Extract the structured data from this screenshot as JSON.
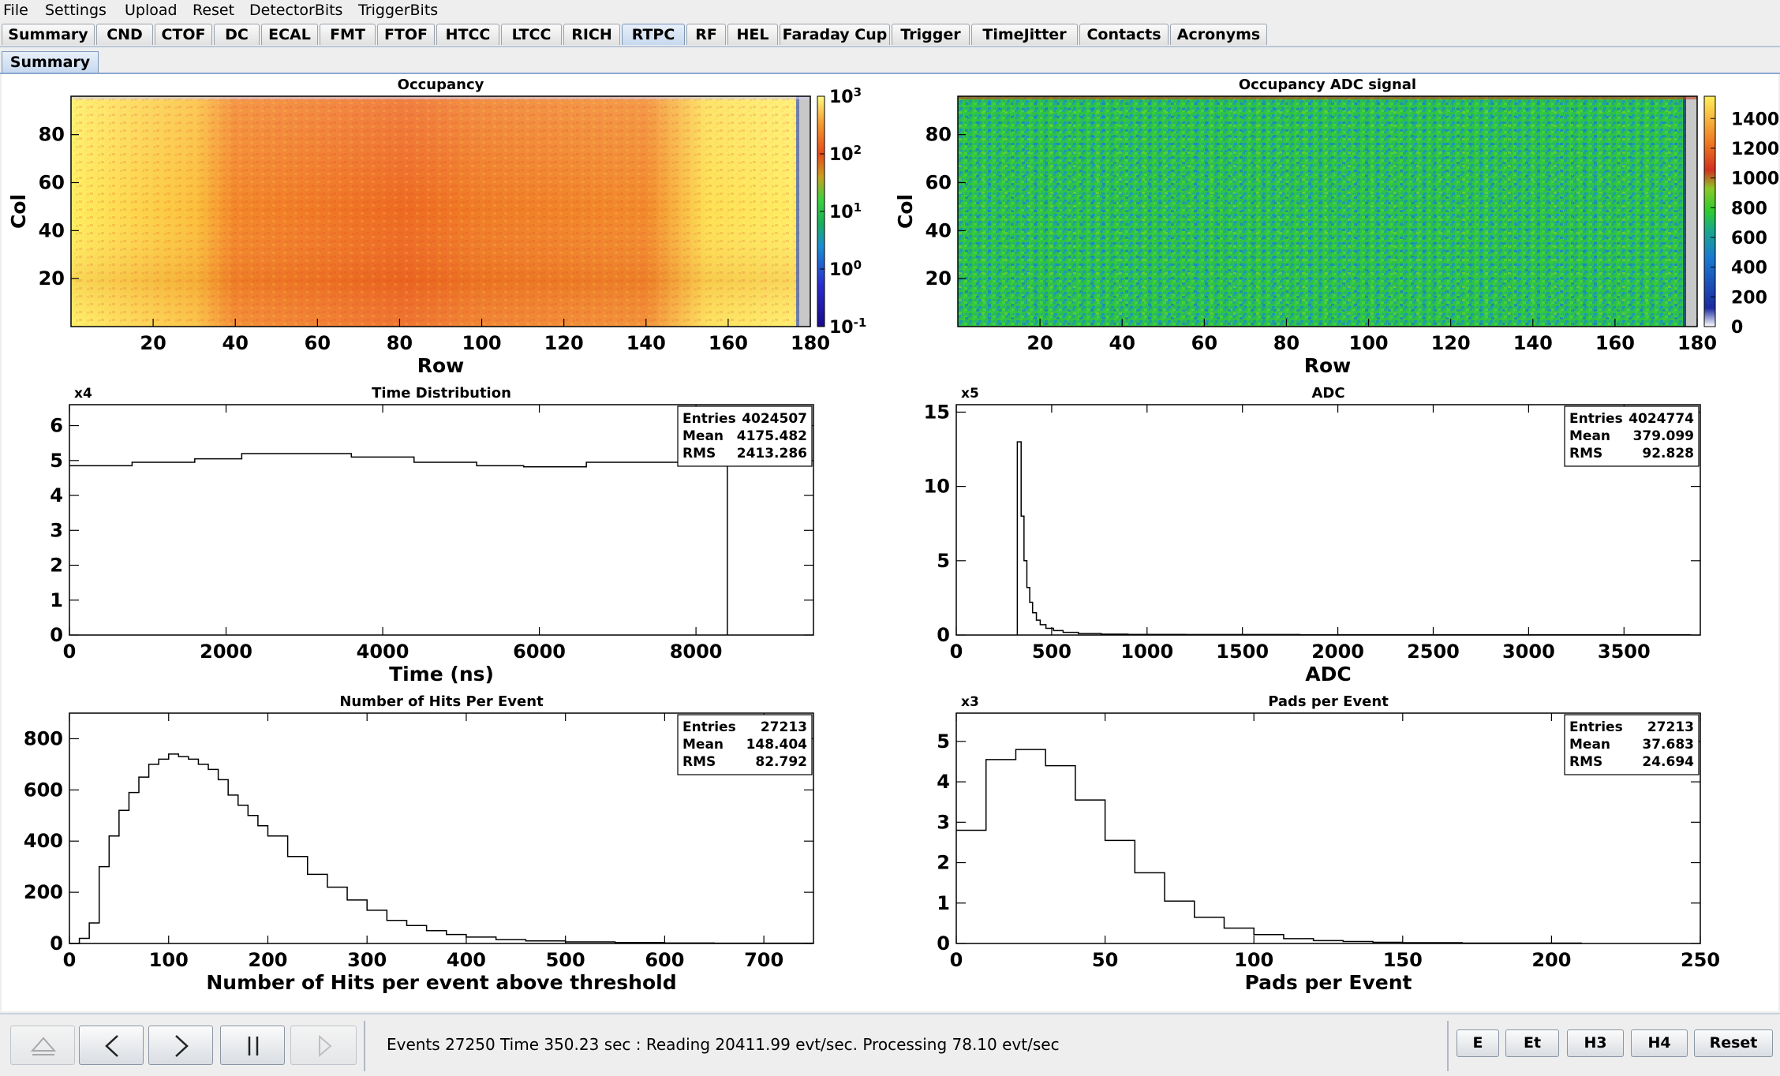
{
  "menubar": {
    "items": [
      "File",
      "Settings",
      "Upload",
      "Reset",
      "DetectorBits",
      "TriggerBits"
    ]
  },
  "tabs": [
    "Summary",
    "CND",
    "CTOF",
    "DC",
    "ECAL",
    "FMT",
    "FTOF",
    "HTCC",
    "LTCC",
    "RICH",
    "RTPC",
    "RF",
    "HEL",
    "Faraday Cup",
    "Trigger",
    "TimeJitter",
    "Contacts",
    "Acronyms"
  ],
  "active_tab": "RTPC",
  "subtab": "Summary",
  "colors": {
    "active_tab": "#c7d8ee",
    "plot_bg": "#ffffff"
  },
  "chart_data": [
    {
      "type": "heatmap",
      "title": "Occupancy",
      "xlabel": "Row",
      "ylabel": "Col",
      "xlim": [
        0,
        180
      ],
      "ylim": [
        0,
        96
      ],
      "x_ticks": [
        20,
        40,
        60,
        80,
        100,
        120,
        140,
        160,
        180
      ],
      "y_ticks": [
        20,
        40,
        60,
        80
      ],
      "color_scale": "log",
      "colorbar_ticks": [
        "10^-1",
        "10^0",
        "10^1",
        "10^2",
        "10^3"
      ],
      "column_profile": [
        {
          "x": 0,
          "level": "high"
        },
        {
          "x": 30,
          "level": "high"
        },
        {
          "x": 40,
          "level": "medium"
        },
        {
          "x": 80,
          "level": "medium"
        },
        {
          "x": 145,
          "level": "medium"
        },
        {
          "x": 160,
          "level": "high"
        },
        {
          "x": 180,
          "level": "high"
        }
      ]
    },
    {
      "type": "heatmap",
      "title": "Occupancy ADC signal",
      "xlabel": "Row",
      "ylabel": "Col",
      "xlim": [
        0,
        180
      ],
      "ylim": [
        0,
        96
      ],
      "x_ticks": [
        20,
        40,
        60,
        80,
        100,
        120,
        140,
        160,
        180
      ],
      "y_ticks": [
        20,
        40,
        60,
        80
      ],
      "color_scale": "linear",
      "colorbar_ticks": [
        0,
        200,
        400,
        600,
        800,
        1000,
        1200,
        1400
      ],
      "typical_value": 700
    },
    {
      "type": "line",
      "title": "Time Distribution",
      "xlabel": "Time (ns)",
      "multiplier": "x4",
      "xlim": [
        0,
        9500
      ],
      "ylim": [
        0,
        6.6
      ],
      "x_ticks": [
        0,
        2000,
        4000,
        6000,
        8000
      ],
      "y_ticks": [
        0,
        1,
        2,
        3,
        4,
        5,
        6
      ],
      "stats": {
        "entries": "4024507",
        "mean": "4175.482",
        "rms": "2413.286"
      },
      "x": [
        0,
        200,
        800,
        1600,
        2200,
        3000,
        3600,
        4400,
        5200,
        5800,
        6600,
        7400,
        8000,
        8380,
        8400,
        8400
      ],
      "y": [
        4.85,
        4.85,
        4.95,
        5.05,
        5.2,
        5.2,
        5.1,
        4.95,
        4.85,
        4.82,
        4.95,
        4.95,
        4.95,
        5.0,
        5.0,
        0
      ]
    },
    {
      "type": "line",
      "title": "ADC",
      "xlabel": "ADC",
      "multiplier": "x5",
      "xlim": [
        0,
        3900
      ],
      "ylim": [
        0,
        15.5
      ],
      "x_ticks": [
        0,
        500,
        1000,
        1500,
        2000,
        2500,
        3000,
        3500
      ],
      "y_ticks": [
        0,
        5,
        10,
        15
      ],
      "stats": {
        "entries": "4024774",
        "mean": "379.099",
        "rms": "92.828"
      },
      "x": [
        320,
        320,
        340,
        355,
        370,
        385,
        400,
        420,
        440,
        470,
        510,
        560,
        640,
        760,
        900,
        1200,
        1800,
        2600,
        3500,
        3850
      ],
      "y": [
        0,
        13,
        8,
        5,
        3.2,
        2.2,
        1.5,
        1.0,
        0.7,
        0.45,
        0.3,
        0.18,
        0.1,
        0.06,
        0.04,
        0.03,
        0.02,
        0.02,
        0.02,
        0.02
      ]
    },
    {
      "type": "line",
      "title": "Number of Hits Per Event",
      "xlabel": "Number of Hits per event above threshold",
      "xlim": [
        0,
        750
      ],
      "ylim": [
        0,
        900
      ],
      "x_ticks": [
        0,
        100,
        200,
        300,
        400,
        500,
        600,
        700
      ],
      "y_ticks": [
        0,
        200,
        400,
        600,
        800
      ],
      "stats": {
        "entries": "27213",
        "mean": "148.404",
        "rms": "82.792"
      },
      "x": [
        0,
        10,
        20,
        30,
        40,
        50,
        60,
        70,
        80,
        90,
        100,
        110,
        120,
        130,
        140,
        150,
        160,
        170,
        180,
        190,
        200,
        220,
        240,
        260,
        280,
        300,
        320,
        340,
        360,
        380,
        400,
        430,
        460,
        500,
        550,
        600,
        650,
        700,
        750
      ],
      "y": [
        0,
        20,
        80,
        300,
        420,
        520,
        590,
        650,
        700,
        720,
        740,
        730,
        720,
        700,
        680,
        640,
        580,
        540,
        500,
        460,
        420,
        340,
        270,
        220,
        170,
        130,
        90,
        70,
        50,
        35,
        25,
        15,
        10,
        6,
        4,
        2,
        1,
        1,
        0
      ]
    },
    {
      "type": "line",
      "title": "Pads per Event",
      "xlabel": "Pads per Event",
      "multiplier": "x3",
      "xlim": [
        0,
        250
      ],
      "ylim": [
        0,
        5.7
      ],
      "x_ticks": [
        0,
        50,
        100,
        150,
        200,
        250
      ],
      "y_ticks": [
        0,
        1,
        2,
        3,
        4,
        5
      ],
      "stats": {
        "entries": "27213",
        "mean": "37.683",
        "rms": "24.694"
      },
      "x": [
        0,
        10,
        20,
        30,
        40,
        50,
        60,
        70,
        80,
        90,
        100,
        110,
        120,
        130,
        140,
        150,
        160,
        170,
        180,
        190,
        200,
        210
      ],
      "y": [
        2.8,
        4.55,
        4.8,
        4.4,
        3.55,
        2.55,
        1.75,
        1.05,
        0.65,
        0.38,
        0.22,
        0.12,
        0.07,
        0.05,
        0.03,
        0.02,
        0.02,
        0.01,
        0.01,
        0.01,
        0.01,
        0
      ]
    }
  ],
  "status": {
    "text": "Events 27250  Time 350.23 sec : Reading 20411.99  evt/sec. Processing 78.10 evt/sec"
  },
  "controls": {
    "left": [
      "eject",
      "previous",
      "next",
      "pause",
      "play"
    ],
    "right": [
      "E",
      "Et",
      "H3",
      "H4",
      "Reset"
    ]
  }
}
